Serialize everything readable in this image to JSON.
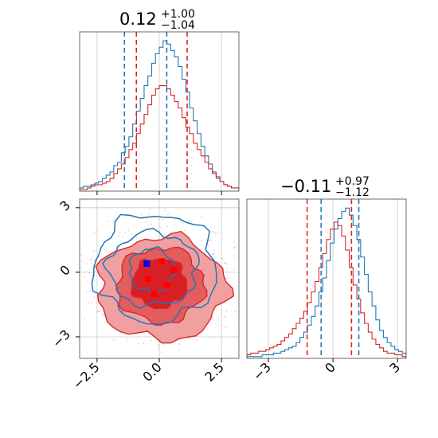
{
  "colors": {
    "blue": "#1f77b4",
    "red": "#d62728",
    "red_fill_outer": "#f0a0a0",
    "red_fill_mid": "#e35d5d",
    "red_fill_inner": "#d91f26",
    "marker_blue": "#0000ff",
    "marker_red": "#ff0000"
  },
  "chart_data": [
    {
      "type": "histogram",
      "panel": "top-left",
      "title": {
        "value": "0.12",
        "plus": "+1.00",
        "minus": "−1.04"
      },
      "xlim": [
        -3.2,
        3.2
      ],
      "quantiles": {
        "blue": [
          -1.4,
          0.3
        ],
        "red": [
          -0.92,
          1.12
        ]
      },
      "series": [
        {
          "color": "blue",
          "values": [
            2,
            3,
            3,
            4,
            5,
            6,
            8,
            10,
            12,
            16,
            18,
            24,
            28,
            34,
            42,
            50,
            58,
            66,
            72,
            80,
            86,
            90,
            94,
            92,
            88,
            84,
            78,
            70,
            62,
            52,
            44,
            36,
            28,
            22,
            17,
            12,
            9,
            6,
            4,
            3,
            2,
            2
          ]
        },
        {
          "color": "red",
          "values": [
            1,
            1,
            2,
            3,
            4,
            4,
            5,
            6,
            8,
            11,
            14,
            17,
            21,
            26,
            30,
            36,
            42,
            48,
            54,
            60,
            64,
            66,
            66,
            64,
            60,
            56,
            52,
            46,
            40,
            36,
            30,
            26,
            22,
            18,
            14,
            11,
            8,
            6,
            4,
            3,
            2,
            2
          ]
        }
      ]
    },
    {
      "type": "contour",
      "panel": "bottom-left",
      "xlim": [
        -3.2,
        3.2
      ],
      "ylim": [
        -4.0,
        3.4
      ],
      "xticks": [
        "−2.5",
        "0.0",
        "2.5"
      ],
      "xtick_values": [
        -2.5,
        0,
        2.5
      ],
      "yticks": [
        "3",
        "0",
        "−3"
      ],
      "ytick_values": [
        3,
        0,
        -3
      ],
      "markers": [
        {
          "color": "marker_blue",
          "x": -0.5,
          "y": 0.4
        },
        {
          "color": "marker_red",
          "x": 0.1,
          "y": 0.5
        },
        {
          "color": "marker_red",
          "x": 0.6,
          "y": 0.1
        },
        {
          "color": "marker_red",
          "x": -0.45,
          "y": -0.3
        },
        {
          "color": "marker_red",
          "x": -0.2,
          "y": -1.0
        },
        {
          "color": "marker_red",
          "x": 0.3,
          "y": -0.6
        }
      ],
      "red_levels": [
        {
          "cx": 0.1,
          "cy": -0.75,
          "rx": 2.6,
          "ry": 2.4
        },
        {
          "cx": 0.05,
          "cy": -0.6,
          "rx": 1.75,
          "ry": 1.75
        },
        {
          "cx": 0.0,
          "cy": -0.5,
          "rx": 1.1,
          "ry": 1.15
        }
      ],
      "blue_levels": [
        {
          "cx": -0.15,
          "cy": 0.2,
          "rx": 2.45,
          "ry": 2.5
        },
        {
          "cx": -0.25,
          "cy": 0.15,
          "rx": 1.8,
          "ry": 1.7
        },
        {
          "cx": -0.3,
          "cy": 0.1,
          "rx": 0.9,
          "ry": 1.0
        }
      ]
    },
    {
      "type": "histogram",
      "panel": "bottom-right",
      "title": {
        "value": "−0.11",
        "plus": "+0.97",
        "minus": "−1.12"
      },
      "xlim": [
        -4.0,
        3.4
      ],
      "xticks": [
        "−3",
        "0",
        "3"
      ],
      "xtick_values": [
        -3,
        0,
        3
      ],
      "quantiles": {
        "blue": [
          -0.55,
          1.2
        ],
        "red": [
          -1.2,
          0.86
        ]
      },
      "series": [
        {
          "color": "blue",
          "values": [
            1,
            1,
            1,
            1,
            2,
            2,
            2,
            3,
            3,
            4,
            5,
            6,
            7,
            9,
            12,
            15,
            19,
            24,
            30,
            38,
            46,
            56,
            66,
            74,
            80,
            84,
            86,
            82,
            76,
            68,
            58,
            48,
            38,
            30,
            22,
            16,
            12,
            9,
            7,
            5,
            4,
            3
          ]
        },
        {
          "color": "red",
          "values": [
            2,
            3,
            3,
            4,
            4,
            5,
            6,
            7,
            8,
            10,
            12,
            14,
            17,
            20,
            23,
            27,
            32,
            38,
            44,
            52,
            60,
            68,
            74,
            78,
            76,
            70,
            62,
            52,
            42,
            34,
            26,
            20,
            15,
            11,
            8,
            6,
            4,
            3,
            3,
            2,
            2,
            1
          ]
        }
      ]
    }
  ]
}
